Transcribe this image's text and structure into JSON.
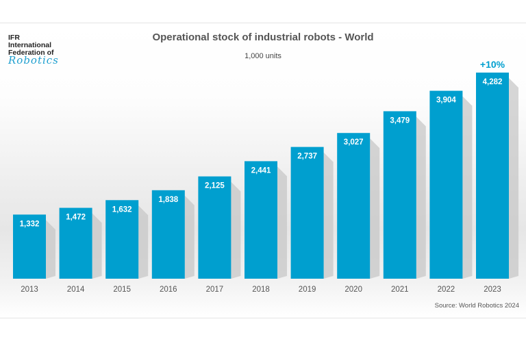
{
  "logo": {
    "line1": "IFR",
    "line2": "International",
    "line3": "Federation of",
    "line4": "Robotics"
  },
  "chart_data": {
    "type": "bar",
    "title": "Operational stock of industrial robots - World",
    "subtitle": "1,000 units",
    "categories": [
      "2013",
      "2014",
      "2015",
      "2016",
      "2017",
      "2018",
      "2019",
      "2020",
      "2021",
      "2022",
      "2023"
    ],
    "values": [
      1332,
      1472,
      1632,
      1838,
      2125,
      2441,
      2737,
      3027,
      3479,
      3904,
      4282
    ],
    "data_labels": [
      "1,332",
      "1,472",
      "1,632",
      "1,838",
      "2,125",
      "2,441",
      "2,737",
      "3,027",
      "3,479",
      "3,904",
      "4,282"
    ],
    "annotation": "+10%",
    "ylim": [
      0,
      4282
    ],
    "grid": false,
    "bar_color": "#009fcf",
    "source": "Source: World Robotics 2024"
  }
}
